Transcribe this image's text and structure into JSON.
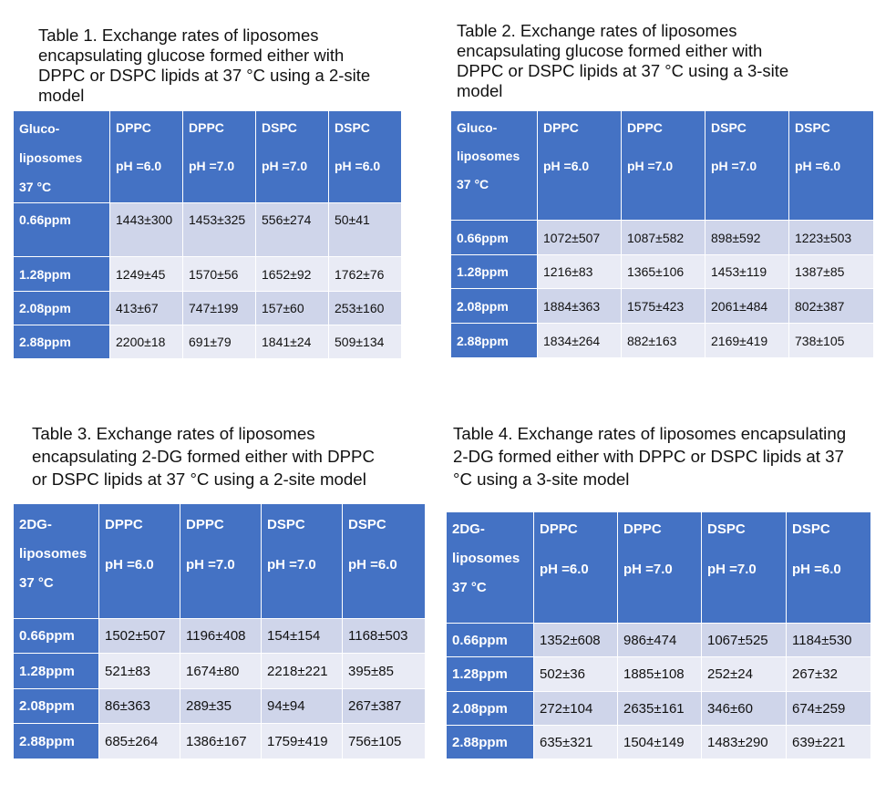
{
  "tables": [
    {
      "caption_lines": [
        "Table 1. Exchange rates of liposomes",
        "encapsulating glucose formed either with",
        "DPPC or DSPC lipids at 37 °C using a 2-site",
        "model"
      ],
      "corner": [
        "Gluco-",
        "liposomes",
        "37 °C"
      ],
      "columns": [
        {
          "lipid": "DPPC",
          "ph": "pH =6.0"
        },
        {
          "lipid": "DPPC",
          "ph": "pH =7.0"
        },
        {
          "lipid": "DSPC",
          "ph": "pH =7.0"
        },
        {
          "lipid": "DSPC",
          "ph": "pH =6.0"
        }
      ],
      "rows": [
        {
          "label": "0.66ppm",
          "cells": [
            "1443±300",
            "1453±325",
            "556±274",
            "50±41"
          ]
        },
        {
          "label": "1.28ppm",
          "cells": [
            "1249±45",
            "1570±56",
            "1652±92",
            "1762±76"
          ]
        },
        {
          "label": "2.08ppm",
          "cells": [
            "413±67",
            "747±199",
            "157±60",
            "253±160"
          ]
        },
        {
          "label": "2.88ppm",
          "cells": [
            "2200±18",
            "691±79",
            "1841±24",
            "509±134"
          ]
        }
      ]
    },
    {
      "caption_lines": [
        "Table 2. Exchange rates of liposomes",
        "encapsulating glucose formed either with",
        "DPPC or DSPC lipids at 37 °C using a 3-site",
        "model"
      ],
      "corner": [
        "Gluco-",
        "liposomes",
        "37 °C"
      ],
      "columns": [
        {
          "lipid": "DPPC",
          "ph": "pH =6.0"
        },
        {
          "lipid": "DPPC",
          "ph": "pH =7.0"
        },
        {
          "lipid": "DSPC",
          "ph": "pH =7.0"
        },
        {
          "lipid": "DSPC",
          "ph": "pH =6.0"
        }
      ],
      "rows": [
        {
          "label": "0.66ppm",
          "cells": [
            "1072±507",
            "1087±582",
            "898±592",
            "1223±503"
          ]
        },
        {
          "label": "1.28ppm",
          "cells": [
            "1216±83",
            "1365±106",
            "1453±119",
            "1387±85"
          ]
        },
        {
          "label": "2.08ppm",
          "cells": [
            "1884±363",
            "1575±423",
            "2061±484",
            "802±387"
          ]
        },
        {
          "label": "2.88ppm",
          "cells": [
            "1834±264",
            "882±163",
            "2169±419",
            "738±105"
          ]
        }
      ]
    },
    {
      "caption_lines": [
        "Table 3. Exchange rates of liposomes",
        "encapsulating 2-DG formed either with DPPC",
        "or DSPC lipids at 37 °C using a 2-site model"
      ],
      "corner": [
        "2DG-",
        "liposomes",
        "37 °C"
      ],
      "columns": [
        {
          "lipid": "DPPC",
          "ph": "pH =6.0"
        },
        {
          "lipid": "DPPC",
          "ph": "pH =7.0"
        },
        {
          "lipid": "DSPC",
          "ph": "pH =7.0"
        },
        {
          "lipid": "DSPC",
          "ph": "pH =6.0"
        }
      ],
      "rows": [
        {
          "label": "0.66ppm",
          "cells": [
            "1502±507",
            "1196±408",
            "154±154",
            "1168±503"
          ]
        },
        {
          "label": "1.28ppm",
          "cells": [
            "521±83",
            "1674±80",
            "2218±221",
            "395±85"
          ]
        },
        {
          "label": "2.08ppm",
          "cells": [
            "86±363",
            "289±35",
            "94±94",
            "267±387"
          ]
        },
        {
          "label": "2.88ppm",
          "cells": [
            "685±264",
            "1386±167",
            "1759±419",
            "756±105"
          ]
        }
      ]
    },
    {
      "caption_lines": [
        "Table 4. Exchange rates of liposomes encapsulating",
        "2-DG formed either with DPPC or DSPC lipids at 37",
        "°C using a 3-site model"
      ],
      "corner": [
        "2DG-",
        "liposomes",
        "37 °C"
      ],
      "columns": [
        {
          "lipid": "DPPC",
          "ph": "pH =6.0"
        },
        {
          "lipid": "DPPC",
          "ph": "pH =7.0"
        },
        {
          "lipid": "DSPC",
          "ph": "pH =7.0"
        },
        {
          "lipid": "DSPC",
          "ph": "pH =6.0"
        }
      ],
      "rows": [
        {
          "label": "0.66ppm",
          "cells": [
            "1352±608",
            "986±474",
            "1067±525",
            "1184±530"
          ]
        },
        {
          "label": "1.28ppm",
          "cells": [
            "502±36",
            "1885±108",
            "252±24",
            "267±32"
          ]
        },
        {
          "label": "2.08ppm",
          "cells": [
            "272±104",
            "2635±161",
            "346±60",
            "674±259"
          ]
        },
        {
          "label": "2.88ppm",
          "cells": [
            "635±321",
            "1504±149",
            "1483±290",
            "639±221"
          ]
        }
      ]
    }
  ]
}
